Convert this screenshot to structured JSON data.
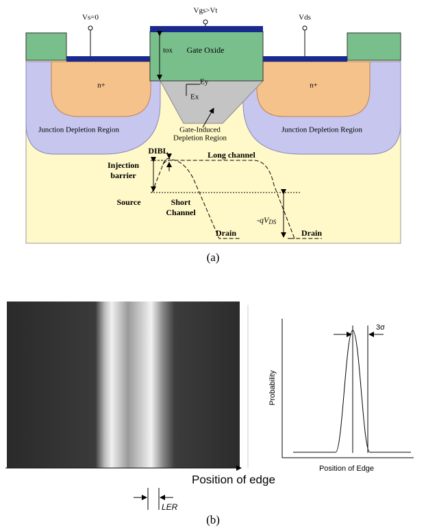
{
  "panel_a": {
    "terminals": {
      "source": "Vs=0",
      "gate": "Vgs>Vt",
      "drain": "Vds"
    },
    "tox": "tox",
    "gate_oxide": "Gate Oxide",
    "field_x": "Ex",
    "field_y": "Ey",
    "n_left": "n+",
    "n_right": "n+",
    "left_depletion": "Junction Depletion Region",
    "gate_depletion": [
      "Gate-Induced",
      "Depletion Region"
    ],
    "right_depletion": "Junction Depletion Region",
    "dibl": "DIBL",
    "long_channel": "Long channel",
    "injection_barrier": [
      "Injection",
      "barrier"
    ],
    "source": "Source",
    "short_channel": [
      "Short",
      "Channel"
    ],
    "qvds": {
      "prefix": "-qV",
      "subscript": "DS"
    },
    "drain_short": "Drain",
    "drain_long": "Drain",
    "caption": "(a)"
  },
  "panel_b": {
    "position_of_edge": "Position of edge",
    "ler": "LER",
    "y_axis": "Probability",
    "x_axis": "Position of Edge",
    "sigma": "3σ",
    "caption": "(b)"
  }
}
